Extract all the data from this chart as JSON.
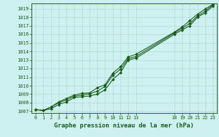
{
  "title": "Graphe pression niveau de la mer (hPa)",
  "bg_color": "#cdf0f0",
  "plot_bg_color": "#cdf0f0",
  "grid_color": "#aaaaaa",
  "line_color": "#1a5c1a",
  "marker_color": "#1a5c1a",
  "xlim": [
    -0.5,
    23.5
  ],
  "ylim": [
    1006.8,
    1019.6
  ],
  "yticks": [
    1007,
    1008,
    1009,
    1010,
    1011,
    1012,
    1013,
    1014,
    1015,
    1016,
    1017,
    1018,
    1019
  ],
  "xtick_positions": [
    0,
    1,
    2,
    3,
    4,
    5,
    6,
    7,
    8,
    9,
    10,
    11,
    12,
    13,
    18,
    19,
    20,
    21,
    22,
    23
  ],
  "xtick_labels": [
    "0",
    "1",
    "2",
    "3",
    "4",
    "5",
    "6",
    "7",
    "8",
    "9",
    "10",
    "11",
    "12",
    "13",
    "18",
    "19",
    "20",
    "21",
    "22",
    "23"
  ],
  "hours": [
    0,
    1,
    2,
    3,
    4,
    5,
    6,
    7,
    8,
    9,
    10,
    11,
    12,
    13,
    18,
    19,
    20,
    21,
    22,
    23
  ],
  "series1": [
    1007.2,
    1007.1,
    1007.3,
    1007.8,
    1008.1,
    1008.6,
    1008.7,
    1008.8,
    1009.0,
    1009.5,
    1010.7,
    1011.5,
    1013.0,
    1013.2,
    1016.0,
    1016.5,
    1017.0,
    1018.0,
    1018.5,
    1019.3
  ],
  "series2": [
    1007.2,
    1007.1,
    1007.5,
    1008.0,
    1008.35,
    1008.75,
    1008.9,
    1009.05,
    1009.35,
    1009.9,
    1011.2,
    1011.9,
    1013.15,
    1013.4,
    1016.15,
    1016.7,
    1017.25,
    1018.15,
    1018.7,
    1019.45
  ],
  "series3": [
    1007.2,
    1007.1,
    1007.5,
    1008.1,
    1008.5,
    1008.9,
    1009.1,
    1009.15,
    1009.75,
    1010.1,
    1011.45,
    1012.2,
    1013.35,
    1013.65,
    1016.25,
    1016.85,
    1017.6,
    1018.35,
    1018.95,
    1019.5
  ],
  "title_fontsize": 6.5,
  "tick_fontsize": 5,
  "tick_color": "#1a5c1a",
  "border_color": "#336633"
}
